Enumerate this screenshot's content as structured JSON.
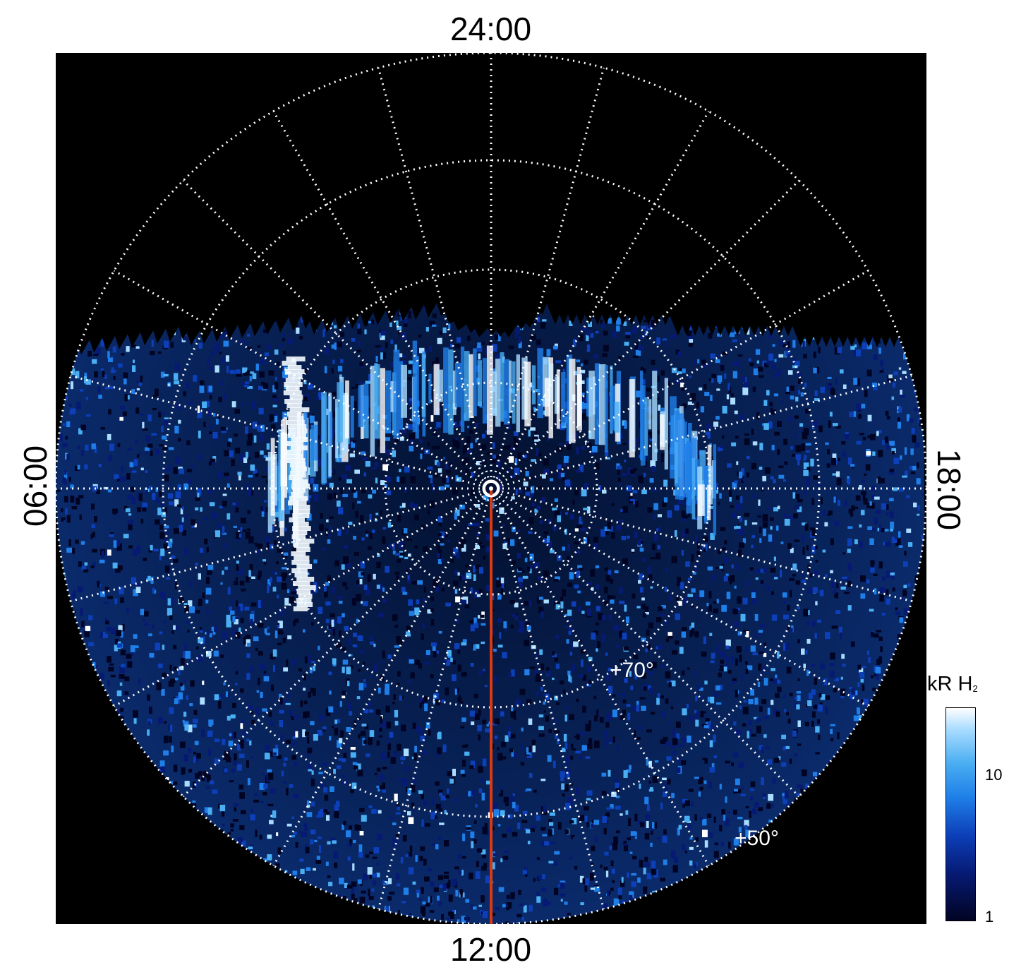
{
  "labels": {
    "top": "24:00",
    "bottom": "12:00",
    "left": "06:00",
    "right": "18:00"
  },
  "latitude_labels": [
    "+70°",
    "+50°"
  ],
  "colorbar": {
    "unit": "kR H",
    "unit_sub": "2",
    "ticks": [
      "10",
      "1"
    ]
  },
  "colors": {
    "background": "#000000",
    "grid": "#ffffff",
    "meridian_line": "#d83a12",
    "emission_low": "#020424",
    "emission_high": "#ffffff"
  },
  "view": {
    "projection": "polar, north pole at center",
    "grid": "dotted",
    "colorbar_scale": "log"
  }
}
